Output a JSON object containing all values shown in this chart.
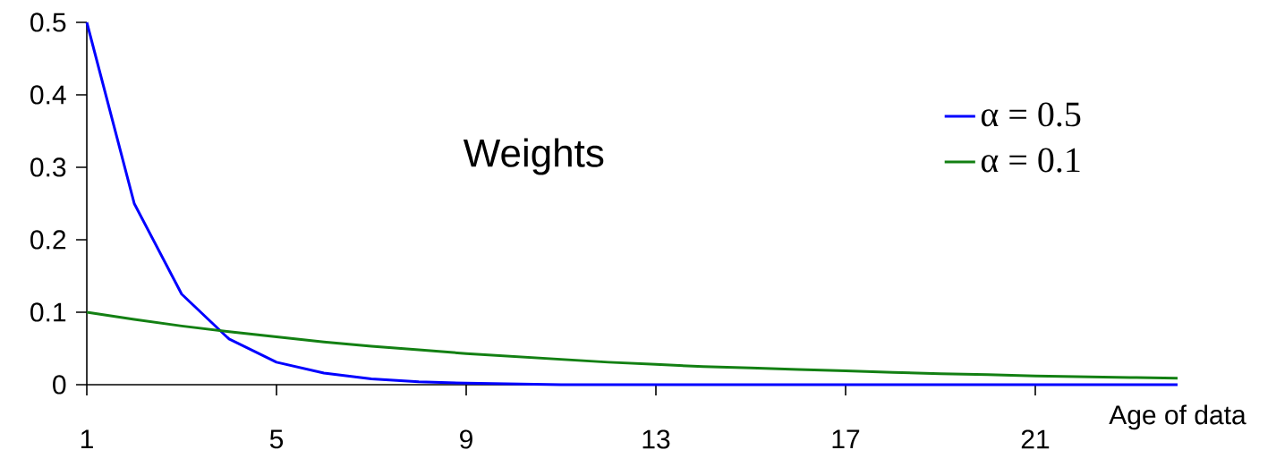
{
  "chart_data": {
    "type": "line",
    "title": "Weights",
    "xlabel": "Age of data",
    "x": [
      1,
      2,
      3,
      4,
      5,
      6,
      7,
      8,
      9,
      10,
      11,
      12,
      13,
      14,
      15,
      16,
      17,
      18,
      19,
      20,
      21,
      22,
      23,
      24
    ],
    "series": [
      {
        "name": "α = 0.5",
        "color": "#0000ff",
        "values": [
          0.5,
          0.25,
          0.125,
          0.063,
          0.031,
          0.016,
          0.008,
          0.004,
          0.002,
          0.001,
          0,
          0,
          0,
          0,
          0,
          0,
          0,
          0,
          0,
          0,
          0,
          0,
          0,
          0
        ]
      },
      {
        "name": "α = 0.1",
        "color": "#138013",
        "values": [
          0.1,
          0.09,
          0.081,
          0.073,
          0.066,
          0.059,
          0.053,
          0.048,
          0.043,
          0.039,
          0.035,
          0.031,
          0.028,
          0.025,
          0.023,
          0.021,
          0.019,
          0.017,
          0.015,
          0.014,
          0.012,
          0.011,
          0.01,
          0.009
        ]
      }
    ],
    "xlim": [
      1,
      24
    ],
    "ylim": [
      0,
      0.5
    ],
    "xticks": [
      1,
      5,
      9,
      13,
      17,
      21
    ],
    "yticks": [
      0,
      0.1,
      0.2,
      0.3,
      0.4,
      0.5
    ],
    "legend": "right"
  }
}
